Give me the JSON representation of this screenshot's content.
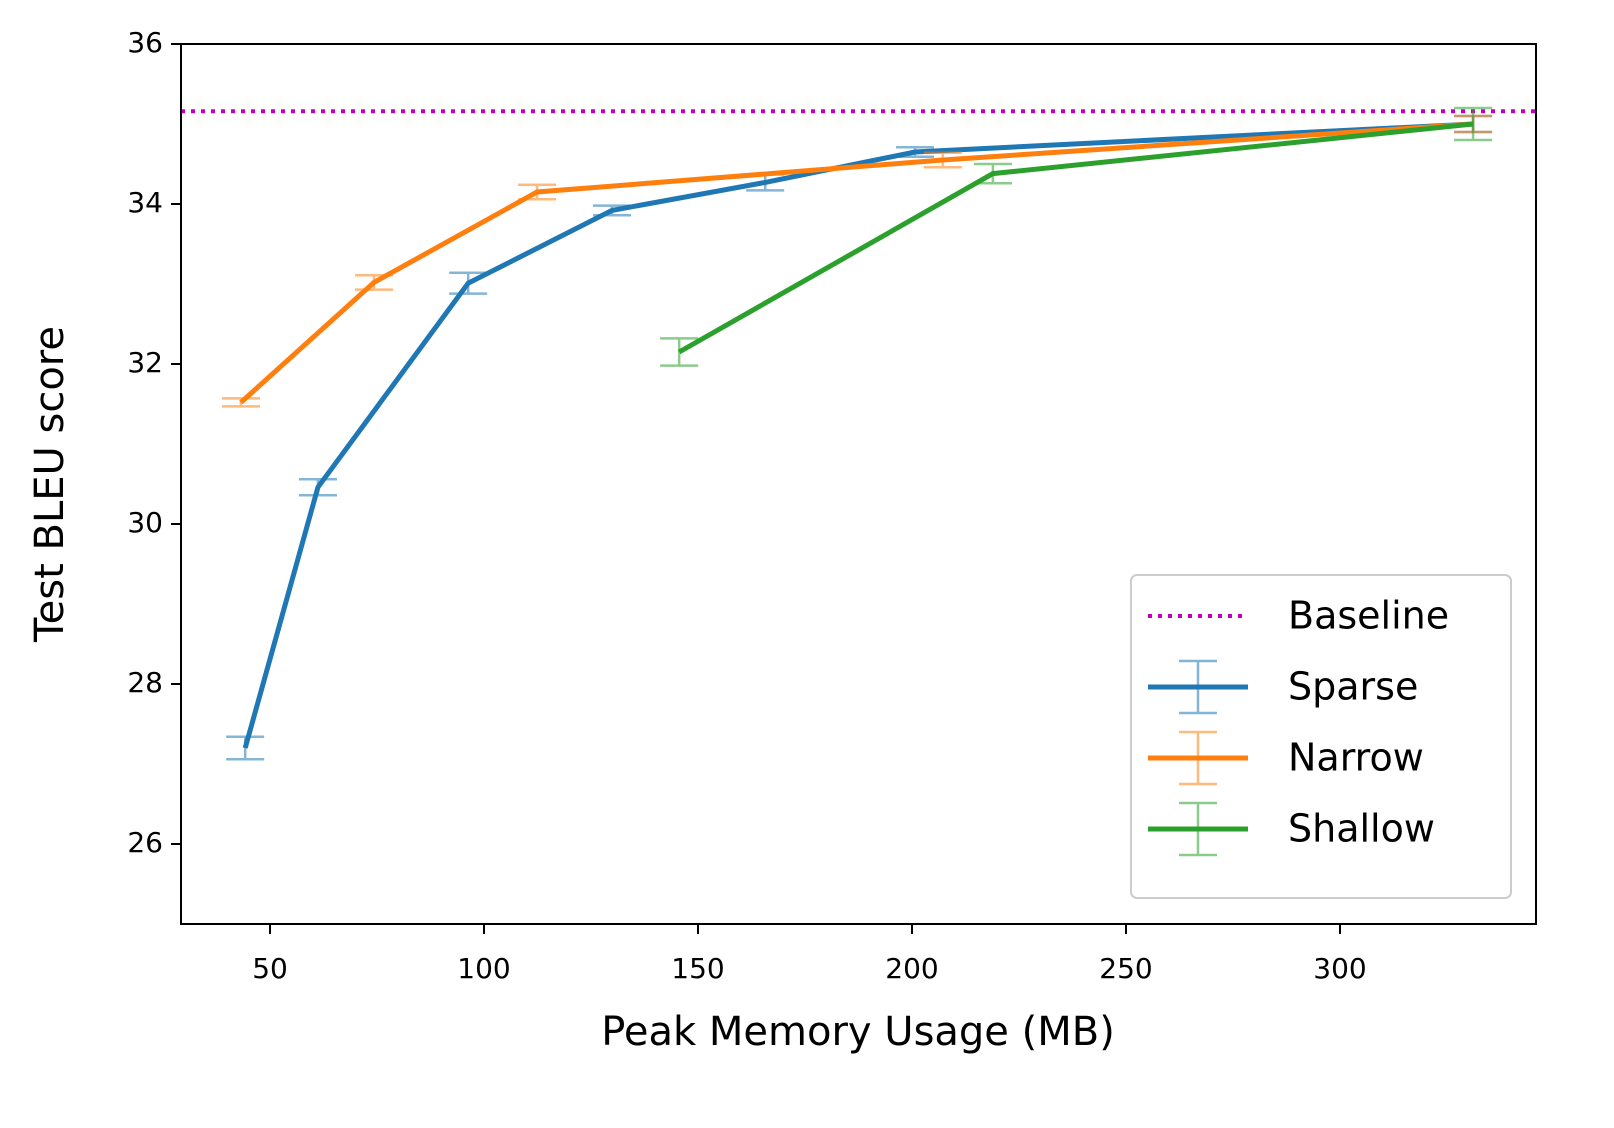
{
  "chart_data": {
    "type": "line",
    "xlabel": "Peak Memory Usage (MB)",
    "ylabel": "Test BLEU score",
    "xlim": [
      29.2,
      345.8
    ],
    "ylim": [
      25,
      36
    ],
    "xticks": [
      50,
      100,
      150,
      200,
      250,
      300
    ],
    "yticks": [
      26,
      28,
      30,
      32,
      34,
      36
    ],
    "legend": "lower right",
    "hlines": [
      {
        "name": "Baseline",
        "value": 35.16,
        "color": "#bf00bf"
      }
    ],
    "series": [
      {
        "name": "Sparse",
        "color": "#1f77b4",
        "x": [
          44.2,
          61.2,
          96.3,
          129.9,
          165.7,
          200.7,
          331.1
        ],
        "values": [
          27.2,
          30.46,
          33.01,
          33.92,
          34.27,
          34.65,
          35.0
        ],
        "errors": [
          0.14,
          0.1,
          0.13,
          0.06,
          0.1,
          0.06,
          0.1
        ]
      },
      {
        "name": "Narrow",
        "color": "#ff7f0e",
        "x": [
          43.2,
          74.3,
          112.4,
          207.2,
          331.1
        ],
        "values": [
          31.52,
          33.02,
          34.15,
          34.55,
          35.0
        ],
        "errors": [
          0.05,
          0.09,
          0.09,
          0.09,
          0.1
        ]
      },
      {
        "name": "Shallow",
        "color": "#2ca02c",
        "x": [
          145.6,
          218.9,
          331.1
        ],
        "values": [
          32.15,
          34.38,
          35.0
        ],
        "errors": [
          0.17,
          0.12,
          0.2
        ]
      }
    ]
  }
}
